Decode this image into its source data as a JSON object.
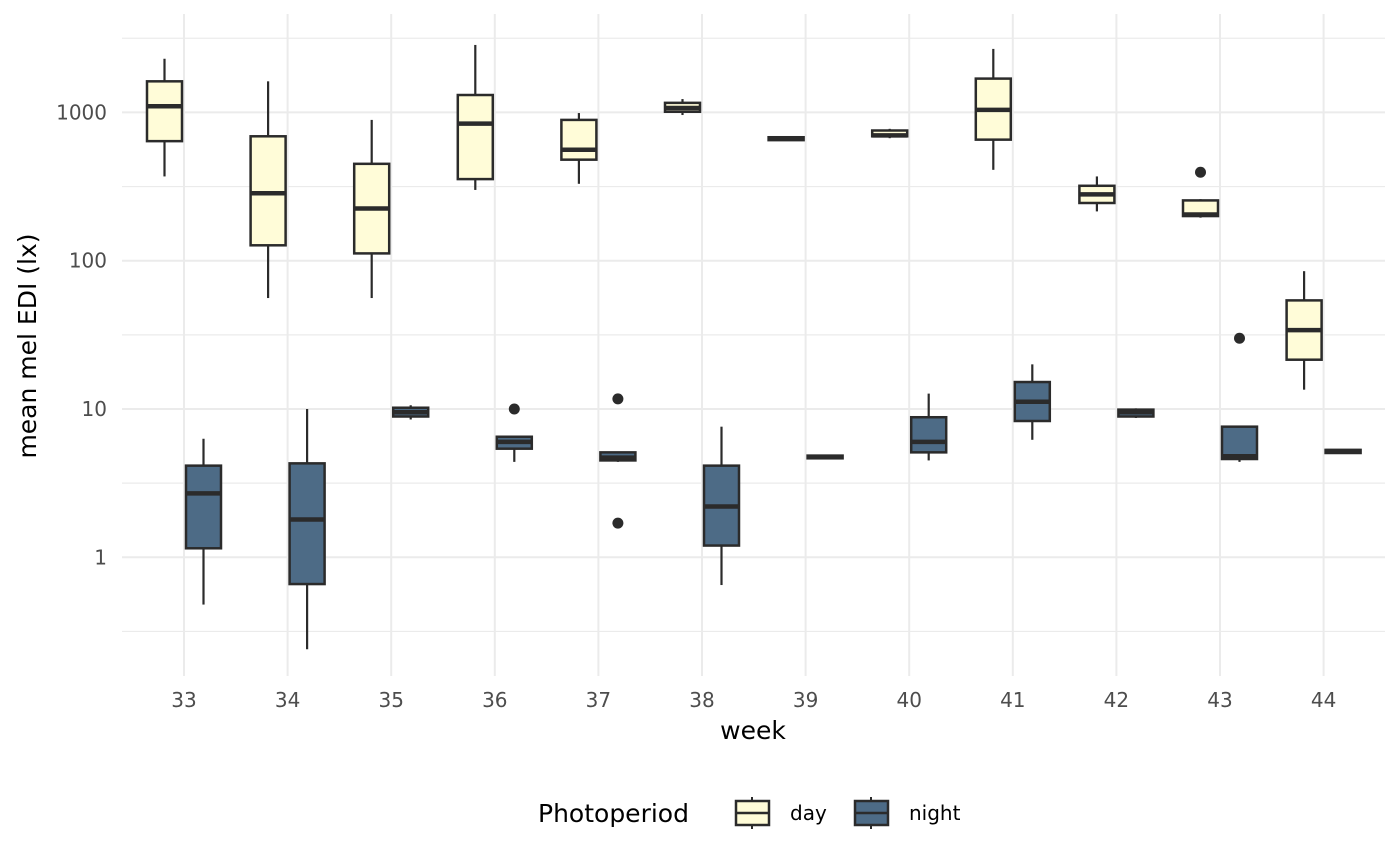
{
  "chart_data": {
    "type": "boxplot",
    "xlabel": "week",
    "ylabel": "mean mel EDI (lx)",
    "y_scale": "log10",
    "ylim": [
      0.15,
      4000
    ],
    "y_ticks": [
      {
        "value": 1,
        "label": "1"
      },
      {
        "value": 10,
        "label": "10"
      },
      {
        "value": 100,
        "label": "100"
      },
      {
        "value": 1000,
        "label": "1000"
      }
    ],
    "categories": [
      "33",
      "34",
      "35",
      "36",
      "37",
      "38",
      "39",
      "40",
      "41",
      "42",
      "43",
      "44"
    ],
    "grid": true,
    "legend": {
      "title": "Photoperiod",
      "placement": "bottom",
      "entries": [
        "day",
        "night"
      ]
    },
    "colors": {
      "day": "#FFFCD8",
      "night": "#4D6B86",
      "outline": "#2b2b2b",
      "grid": "#ebebeb"
    },
    "series": [
      {
        "name": "day",
        "boxes": [
          {
            "week": "33",
            "min": 370,
            "q1": 640,
            "median": 1100,
            "q3": 1620,
            "max": 2300,
            "outliers": []
          },
          {
            "week": "34",
            "min": 56,
            "q1": 127,
            "median": 285,
            "q3": 690,
            "max": 1620,
            "outliers": []
          },
          {
            "week": "35",
            "min": 56,
            "q1": 112,
            "median": 225,
            "q3": 450,
            "max": 890,
            "outliers": []
          },
          {
            "week": "36",
            "min": 300,
            "q1": 355,
            "median": 840,
            "q3": 1310,
            "max": 2850,
            "outliers": []
          },
          {
            "week": "37",
            "min": 330,
            "q1": 480,
            "median": 560,
            "q3": 890,
            "max": 990,
            "outliers": []
          },
          {
            "week": "38",
            "min": 960,
            "q1": 1010,
            "median": 1070,
            "q3": 1160,
            "max": 1230,
            "outliers": []
          },
          {
            "week": "39",
            "min": 645,
            "q1": 650,
            "median": 665,
            "q3": 680,
            "max": 690,
            "outliers": []
          },
          {
            "week": "40",
            "min": 670,
            "q1": 690,
            "median": 700,
            "q3": 755,
            "max": 775,
            "outliers": []
          },
          {
            "week": "41",
            "min": 410,
            "q1": 655,
            "median": 1040,
            "q3": 1690,
            "max": 2680,
            "outliers": []
          },
          {
            "week": "42",
            "min": 215,
            "q1": 245,
            "median": 280,
            "q3": 320,
            "max": 370,
            "outliers": []
          },
          {
            "week": "43",
            "min": 195,
            "q1": 200,
            "median": 205,
            "q3": 255,
            "max": 260,
            "outliers": [
              395
            ]
          },
          {
            "week": "44",
            "min": 13.5,
            "q1": 21.5,
            "median": 34,
            "q3": 54,
            "max": 85,
            "outliers": []
          }
        ]
      },
      {
        "name": "night",
        "boxes": [
          {
            "week": "33",
            "min": 0.48,
            "q1": 1.15,
            "median": 2.7,
            "q3": 4.15,
            "max": 6.3,
            "outliers": []
          },
          {
            "week": "34",
            "min": 0.24,
            "q1": 0.66,
            "median": 1.8,
            "q3": 4.3,
            "max": 10,
            "outliers": []
          },
          {
            "week": "35",
            "min": 8.5,
            "q1": 8.9,
            "median": 9.5,
            "q3": 10.2,
            "max": 10.6,
            "outliers": []
          },
          {
            "week": "36",
            "min": 4.4,
            "q1": 5.4,
            "median": 6.0,
            "q3": 6.5,
            "max": 6.5,
            "outliers": [
              10
            ]
          },
          {
            "week": "37",
            "min": 4.4,
            "q1": 4.5,
            "median": 4.7,
            "q3": 5.1,
            "max": 5.1,
            "outliers": [
              11.7,
              1.7
            ]
          },
          {
            "week": "38",
            "min": 0.65,
            "q1": 1.2,
            "median": 2.2,
            "q3": 4.15,
            "max": 7.6,
            "outliers": []
          },
          {
            "week": "39",
            "min": 4.6,
            "q1": 4.65,
            "median": 4.75,
            "q3": 4.85,
            "max": 4.9,
            "outliers": []
          },
          {
            "week": "40",
            "min": 4.5,
            "q1": 5.1,
            "median": 6.0,
            "q3": 8.8,
            "max": 12.7,
            "outliers": []
          },
          {
            "week": "41",
            "min": 6.2,
            "q1": 8.3,
            "median": 11.2,
            "q3": 15.2,
            "max": 20,
            "outliers": []
          },
          {
            "week": "42",
            "min": 8.7,
            "q1": 8.9,
            "median": 9.5,
            "q3": 9.9,
            "max": 10.1,
            "outliers": []
          },
          {
            "week": "43",
            "min": 4.4,
            "q1": 4.6,
            "median": 4.8,
            "q3": 7.6,
            "max": 7.6,
            "outliers": [
              30
            ]
          },
          {
            "week": "44",
            "min": 5.0,
            "q1": 5.05,
            "median": 5.2,
            "q3": 5.3,
            "max": 5.35,
            "outliers": []
          }
        ]
      }
    ]
  }
}
